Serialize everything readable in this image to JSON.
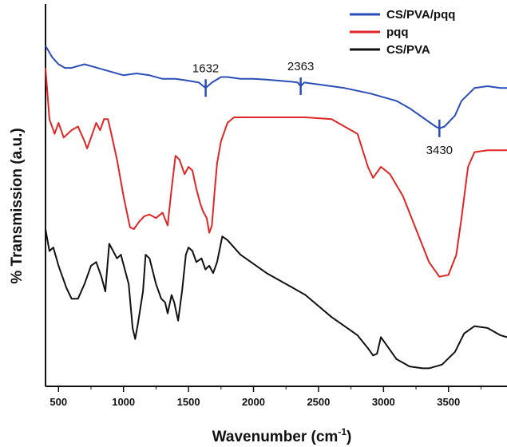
{
  "chart_data": {
    "type": "line",
    "xlabel": "Wavenumber (cm",
    "xlabel_sup": "-1",
    "xlabel_end": ")",
    "ylabel": "% Transmission (a.u.)",
    "xlim": [
      400,
      3950
    ],
    "x_ticks": [
      500,
      1000,
      1500,
      2000,
      2500,
      3000,
      3500
    ],
    "y_ticks_shown": false,
    "grid": false,
    "legend_position": "top-right",
    "series": [
      {
        "name": "CS/PVA/pqq",
        "color": "#2b4db8",
        "points": [
          [
            400,
            8.9
          ],
          [
            450,
            8.6
          ],
          [
            500,
            8.4
          ],
          [
            550,
            8.3
          ],
          [
            600,
            8.3
          ],
          [
            700,
            8.4
          ],
          [
            800,
            8.3
          ],
          [
            900,
            8.2
          ],
          [
            1000,
            8.1
          ],
          [
            1100,
            8.15
          ],
          [
            1200,
            8.1
          ],
          [
            1300,
            8.0
          ],
          [
            1400,
            8.0
          ],
          [
            1500,
            7.95
          ],
          [
            1580,
            7.9
          ],
          [
            1632,
            7.75
          ],
          [
            1680,
            7.9
          ],
          [
            1750,
            8.05
          ],
          [
            1800,
            8.05
          ],
          [
            1900,
            8.0
          ],
          [
            2000,
            8.0
          ],
          [
            2100,
            7.98
          ],
          [
            2200,
            7.95
          ],
          [
            2300,
            7.92
          ],
          [
            2340,
            7.9
          ],
          [
            2363,
            7.8
          ],
          [
            2390,
            7.9
          ],
          [
            2500,
            7.85
          ],
          [
            2700,
            7.75
          ],
          [
            2900,
            7.6
          ],
          [
            3000,
            7.5
          ],
          [
            3100,
            7.4
          ],
          [
            3200,
            7.2
          ],
          [
            3300,
            6.95
          ],
          [
            3400,
            6.7
          ],
          [
            3430,
            6.65
          ],
          [
            3470,
            6.7
          ],
          [
            3550,
            7.0
          ],
          [
            3600,
            7.4
          ],
          [
            3700,
            7.75
          ],
          [
            3800,
            7.8
          ],
          [
            3900,
            7.75
          ],
          [
            3950,
            7.75
          ]
        ]
      },
      {
        "name": "pqq",
        "color": "#e02626",
        "points": [
          [
            400,
            8.3
          ],
          [
            430,
            6.9
          ],
          [
            470,
            6.5
          ],
          [
            500,
            6.8
          ],
          [
            540,
            6.4
          ],
          [
            600,
            6.6
          ],
          [
            650,
            6.7
          ],
          [
            700,
            6.3
          ],
          [
            720,
            6.1
          ],
          [
            750,
            6.4
          ],
          [
            790,
            6.8
          ],
          [
            820,
            6.6
          ],
          [
            850,
            6.9
          ],
          [
            880,
            6.9
          ],
          [
            900,
            6.6
          ],
          [
            950,
            5.8
          ],
          [
            1000,
            4.8
          ],
          [
            1050,
            3.95
          ],
          [
            1080,
            3.9
          ],
          [
            1120,
            4.1
          ],
          [
            1160,
            4.25
          ],
          [
            1200,
            4.3
          ],
          [
            1250,
            4.2
          ],
          [
            1300,
            4.35
          ],
          [
            1340,
            4.0
          ],
          [
            1370,
            5.0
          ],
          [
            1400,
            5.9
          ],
          [
            1430,
            5.8
          ],
          [
            1470,
            5.4
          ],
          [
            1500,
            5.6
          ],
          [
            1530,
            5.5
          ],
          [
            1560,
            5.0
          ],
          [
            1590,
            4.6
          ],
          [
            1610,
            4.4
          ],
          [
            1640,
            4.2
          ],
          [
            1660,
            3.8
          ],
          [
            1680,
            4.0
          ],
          [
            1700,
            4.9
          ],
          [
            1720,
            5.7
          ],
          [
            1750,
            6.3
          ],
          [
            1800,
            6.8
          ],
          [
            1850,
            6.95
          ],
          [
            2000,
            6.95
          ],
          [
            2200,
            6.95
          ],
          [
            2400,
            6.95
          ],
          [
            2600,
            6.9
          ],
          [
            2800,
            6.5
          ],
          [
            2880,
            5.6
          ],
          [
            2920,
            5.3
          ],
          [
            2980,
            5.6
          ],
          [
            3050,
            5.4
          ],
          [
            3150,
            4.8
          ],
          [
            3250,
            3.9
          ],
          [
            3350,
            3.0
          ],
          [
            3430,
            2.6
          ],
          [
            3500,
            2.65
          ],
          [
            3560,
            3.2
          ],
          [
            3600,
            4.2
          ],
          [
            3650,
            5.6
          ],
          [
            3700,
            6.0
          ],
          [
            3800,
            6.05
          ],
          [
            3950,
            6.05
          ]
        ]
      },
      {
        "name": "CS/PVA",
        "color": "#111111",
        "points": [
          [
            400,
            3.9
          ],
          [
            430,
            3.3
          ],
          [
            460,
            3.4
          ],
          [
            500,
            2.9
          ],
          [
            560,
            2.3
          ],
          [
            600,
            2.0
          ],
          [
            650,
            2.0
          ],
          [
            700,
            2.4
          ],
          [
            750,
            2.9
          ],
          [
            790,
            3.0
          ],
          [
            830,
            2.6
          ],
          [
            860,
            2.2
          ],
          [
            890,
            3.5
          ],
          [
            920,
            3.3
          ],
          [
            950,
            3.1
          ],
          [
            980,
            3.2
          ],
          [
            1010,
            2.8
          ],
          [
            1040,
            2.4
          ],
          [
            1070,
            1.2
          ],
          [
            1090,
            0.9
          ],
          [
            1110,
            1.3
          ],
          [
            1150,
            2.2
          ],
          [
            1170,
            3.2
          ],
          [
            1200,
            3.1
          ],
          [
            1250,
            2.4
          ],
          [
            1290,
            2.0
          ],
          [
            1320,
            1.9
          ],
          [
            1340,
            1.6
          ],
          [
            1370,
            2.1
          ],
          [
            1390,
            1.9
          ],
          [
            1420,
            1.4
          ],
          [
            1450,
            2.2
          ],
          [
            1480,
            3.2
          ],
          [
            1500,
            3.4
          ],
          [
            1530,
            3.3
          ],
          [
            1560,
            3.0
          ],
          [
            1600,
            3.1
          ],
          [
            1630,
            2.8
          ],
          [
            1660,
            2.9
          ],
          [
            1690,
            2.7
          ],
          [
            1720,
            3.0
          ],
          [
            1760,
            3.7
          ],
          [
            1800,
            3.6
          ],
          [
            1900,
            3.2
          ],
          [
            2000,
            2.95
          ],
          [
            2100,
            2.7
          ],
          [
            2200,
            2.5
          ],
          [
            2300,
            2.3
          ],
          [
            2400,
            2.1
          ],
          [
            2500,
            1.8
          ],
          [
            2600,
            1.5
          ],
          [
            2700,
            1.25
          ],
          [
            2800,
            1.0
          ],
          [
            2880,
            0.65
          ],
          [
            2920,
            0.45
          ],
          [
            2950,
            0.5
          ],
          [
            2980,
            0.95
          ],
          [
            3020,
            0.75
          ],
          [
            3100,
            0.35
          ],
          [
            3200,
            0.15
          ],
          [
            3300,
            0.1
          ],
          [
            3350,
            0.1
          ],
          [
            3450,
            0.2
          ],
          [
            3550,
            0.55
          ],
          [
            3620,
            1.05
          ],
          [
            3700,
            1.25
          ],
          [
            3800,
            1.2
          ],
          [
            3900,
            1.0
          ],
          [
            3950,
            0.95
          ]
        ]
      }
    ],
    "annotations": [
      {
        "label": "1632",
        "x": 1632
      },
      {
        "label": "2363",
        "x": 2363
      },
      {
        "label": "3430",
        "x": 3430
      }
    ]
  }
}
